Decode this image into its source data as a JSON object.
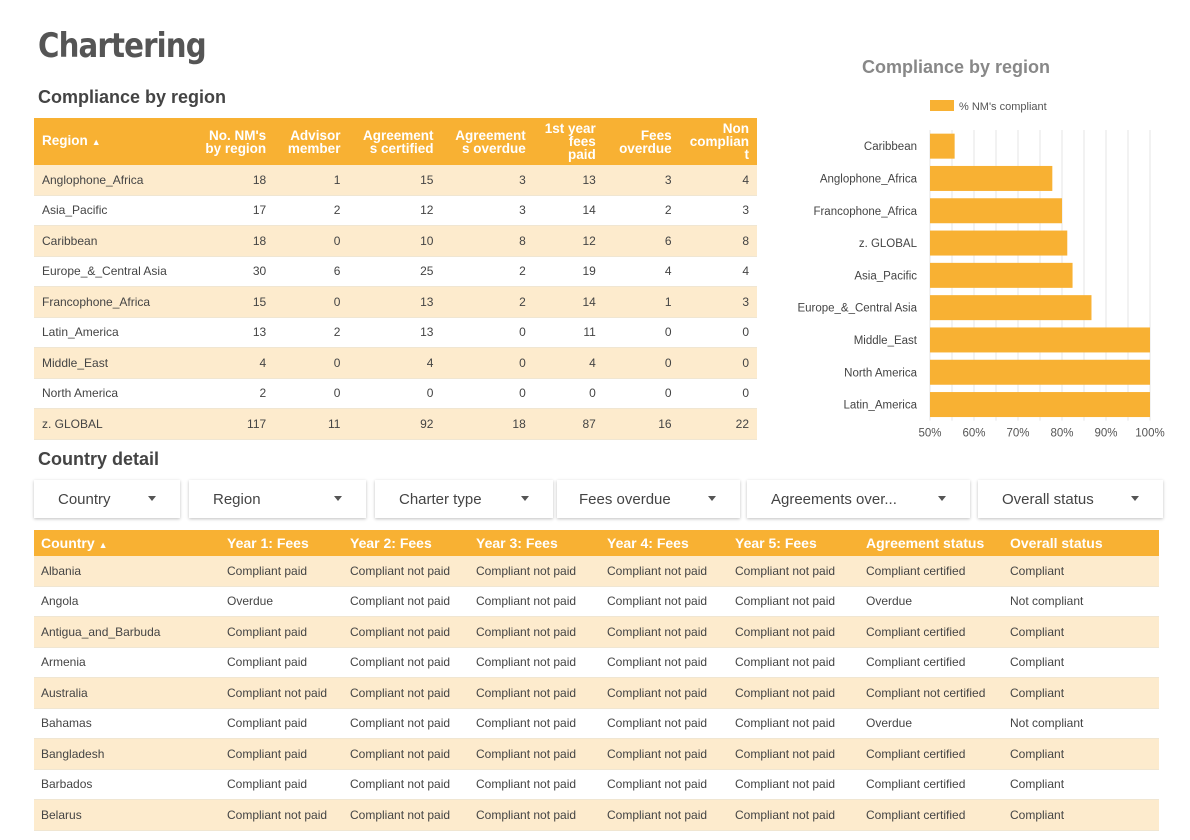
{
  "page": {
    "title": "Chartering"
  },
  "region_section": {
    "title": "Compliance by region",
    "columns": [
      "Region",
      "No. NM's by region",
      "Advisor member",
      "Agreement s certified",
      "Agreement s overdue",
      "1st year fees paid",
      "Fees overdue",
      "Non complian t"
    ],
    "column_lines": [
      [
        "Region"
      ],
      [
        "No. NM's",
        "by region"
      ],
      [
        "Advisor",
        "member"
      ],
      [
        "Agreement",
        "s certified"
      ],
      [
        "Agreement",
        "s overdue"
      ],
      [
        "1st year",
        "fees paid"
      ],
      [
        "Fees",
        "overdue"
      ],
      [
        "Non",
        "complian",
        "t"
      ]
    ],
    "rows": [
      [
        "Anglophone_Africa",
        "18",
        "1",
        "15",
        "3",
        "13",
        "3",
        "4"
      ],
      [
        "Asia_Pacific",
        "17",
        "2",
        "12",
        "3",
        "14",
        "2",
        "3"
      ],
      [
        "Caribbean",
        "18",
        "0",
        "10",
        "8",
        "12",
        "6",
        "8"
      ],
      [
        "Europe_&_Central Asia",
        "30",
        "6",
        "25",
        "2",
        "19",
        "4",
        "4"
      ],
      [
        "Francophone_Africa",
        "15",
        "0",
        "13",
        "2",
        "14",
        "1",
        "3"
      ],
      [
        "Latin_America",
        "13",
        "2",
        "13",
        "0",
        "11",
        "0",
        "0"
      ],
      [
        "Middle_East",
        "4",
        "0",
        "4",
        "0",
        "4",
        "0",
        "0"
      ],
      [
        "North America",
        "2",
        "0",
        "0",
        "0",
        "0",
        "0",
        "0"
      ],
      [
        "z. GLOBAL",
        "117",
        "11",
        "92",
        "18",
        "87",
        "16",
        "22"
      ]
    ]
  },
  "chart_data": {
    "type": "bar",
    "orientation": "horizontal",
    "title": "Compliance by region",
    "categories": [
      "Caribbean",
      "Anglophone_Africa",
      "Francophone_Africa",
      "z. GLOBAL",
      "Asia_Pacific",
      "Europe_&_Central Asia",
      "Middle_East",
      "North America",
      "Latin_America"
    ],
    "series": [
      {
        "name": "% NM's compliant",
        "values": [
          55.6,
          77.8,
          80.0,
          81.2,
          82.4,
          86.7,
          100,
          100,
          100
        ]
      }
    ],
    "xlim": [
      50,
      100
    ],
    "xticks": [
      "50%",
      "60%",
      "70%",
      "80%",
      "90%",
      "100%"
    ],
    "xtick_values": [
      50,
      60,
      70,
      80,
      90,
      100
    ],
    "grid": true,
    "legend": "top",
    "bar_color": "#f8b133"
  },
  "filters": [
    {
      "label": "Country"
    },
    {
      "label": "Region"
    },
    {
      "label": "Charter type"
    },
    {
      "label": "Fees overdue"
    },
    {
      "label": "Agreements over..."
    },
    {
      "label": "Overall status"
    }
  ],
  "country_section": {
    "title": "Country detail",
    "columns": [
      "Country",
      "Year 1: Fees",
      "Year 2: Fees",
      "Year 3: Fees",
      "Year 4: Fees",
      "Year 5: Fees",
      "Agreement status",
      "Overall status"
    ],
    "rows": [
      [
        "Albania",
        "Compliant paid",
        "Compliant not paid",
        "Compliant not paid",
        "Compliant not paid",
        "Compliant not paid",
        "Compliant certified",
        "Compliant"
      ],
      [
        "Angola",
        "Overdue",
        "Compliant not paid",
        "Compliant not paid",
        "Compliant not paid",
        "Compliant not paid",
        "Overdue",
        "Not compliant"
      ],
      [
        "Antigua_and_Barbuda",
        "Compliant paid",
        "Compliant not paid",
        "Compliant not paid",
        "Compliant not paid",
        "Compliant not paid",
        "Compliant certified",
        "Compliant"
      ],
      [
        "Armenia",
        "Compliant paid",
        "Compliant not paid",
        "Compliant not paid",
        "Compliant not paid",
        "Compliant not paid",
        "Compliant certified",
        "Compliant"
      ],
      [
        "Australia",
        "Compliant not paid",
        "Compliant not paid",
        "Compliant not paid",
        "Compliant not paid",
        "Compliant not paid",
        "Compliant not certified",
        "Compliant"
      ],
      [
        "Bahamas",
        "Compliant paid",
        "Compliant not paid",
        "Compliant not paid",
        "Compliant not paid",
        "Compliant not paid",
        "Overdue",
        "Not compliant"
      ],
      [
        "Bangladesh",
        "Compliant paid",
        "Compliant not paid",
        "Compliant not paid",
        "Compliant not paid",
        "Compliant not paid",
        "Compliant certified",
        "Compliant"
      ],
      [
        "Barbados",
        "Compliant paid",
        "Compliant not paid",
        "Compliant not paid",
        "Compliant not paid",
        "Compliant not paid",
        "Compliant certified",
        "Compliant"
      ],
      [
        "Belarus",
        "Compliant not paid",
        "Compliant not paid",
        "Compliant not paid",
        "Compliant not paid",
        "Compliant not paid",
        "Compliant certified",
        "Compliant"
      ]
    ]
  },
  "colors": {
    "accent": "#f8b133",
    "row_tint": "#fdebcd",
    "title_gray": "#555555"
  }
}
